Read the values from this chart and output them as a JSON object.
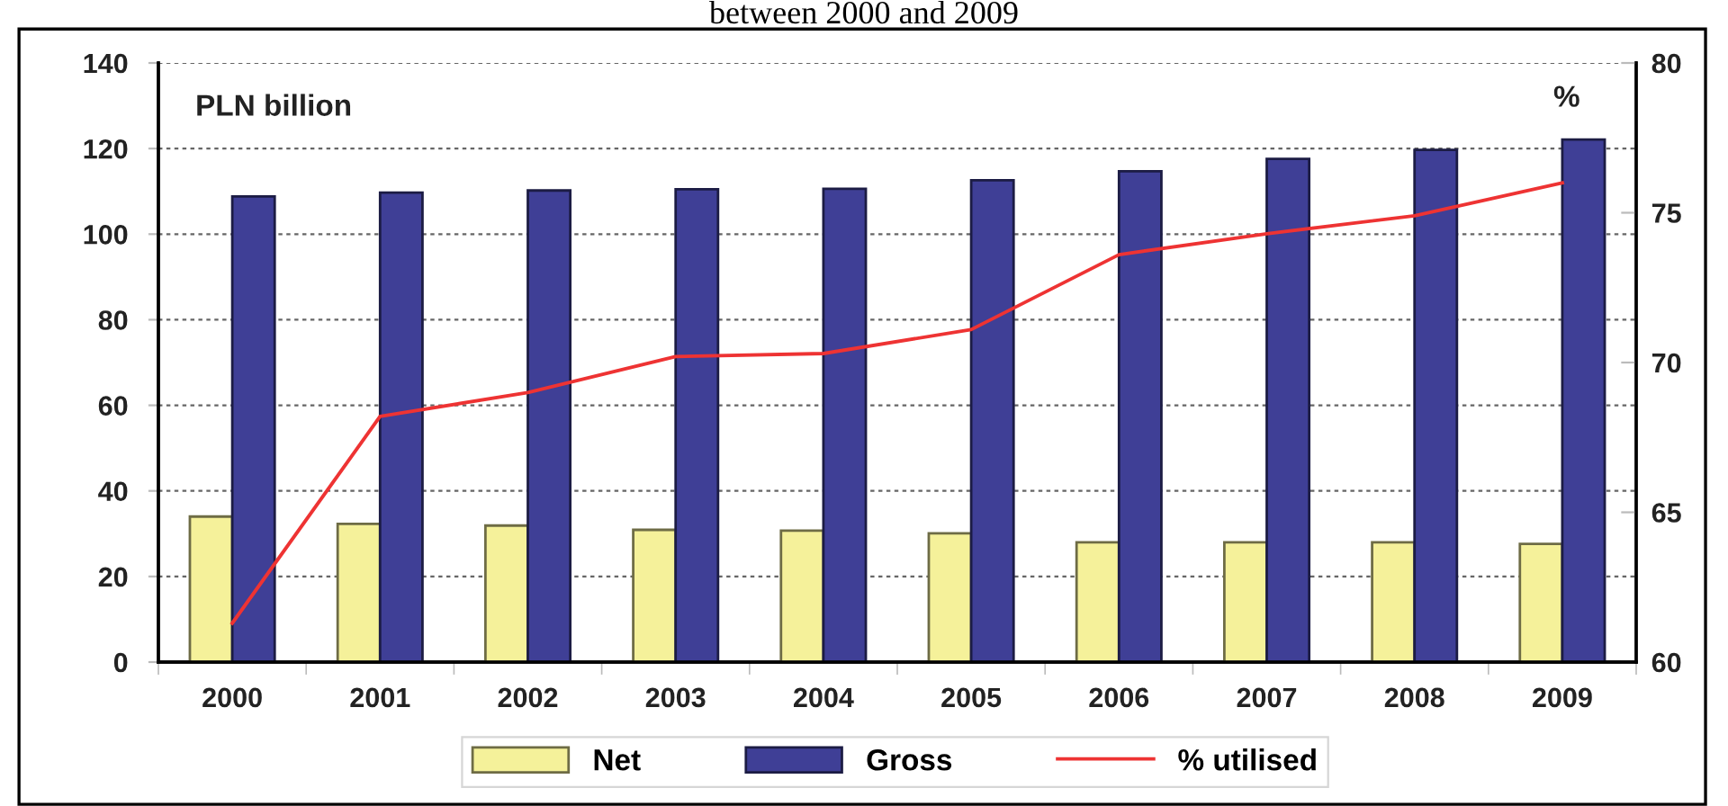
{
  "chart_data": {
    "type": "bar",
    "title": "between 2000 and 2009",
    "ylabel": "PLN billion",
    "y2label": "%",
    "categories": [
      "2000",
      "2001",
      "2002",
      "2003",
      "2004",
      "2005",
      "2006",
      "2007",
      "2008",
      "2009"
    ],
    "series": [
      {
        "name": "Net",
        "color": "#f5f19a",
        "values": [
          34.0,
          32.3,
          31.9,
          30.9,
          30.7,
          30.1,
          28.0,
          28.0,
          28.0,
          27.6
        ]
      },
      {
        "name": "Gross",
        "color": "#3f3f96",
        "values": [
          108.8,
          109.7,
          110.2,
          110.5,
          110.6,
          112.6,
          114.7,
          117.6,
          119.7,
          122.1
        ]
      },
      {
        "name": "% utilised",
        "type": "line",
        "axis": "y2",
        "color": "#ee3333",
        "values": [
          61.3,
          68.2,
          69.0,
          70.2,
          70.3,
          71.1,
          73.6,
          74.3,
          74.9,
          76.0
        ]
      }
    ],
    "ylim": [
      0,
      140
    ],
    "yticks": [
      0,
      20,
      40,
      60,
      80,
      100,
      120,
      140
    ],
    "y2lim": [
      60,
      80
    ],
    "y2ticks": [
      60,
      65,
      70,
      75,
      80
    ],
    "grid": "y",
    "legend": "bottom"
  }
}
